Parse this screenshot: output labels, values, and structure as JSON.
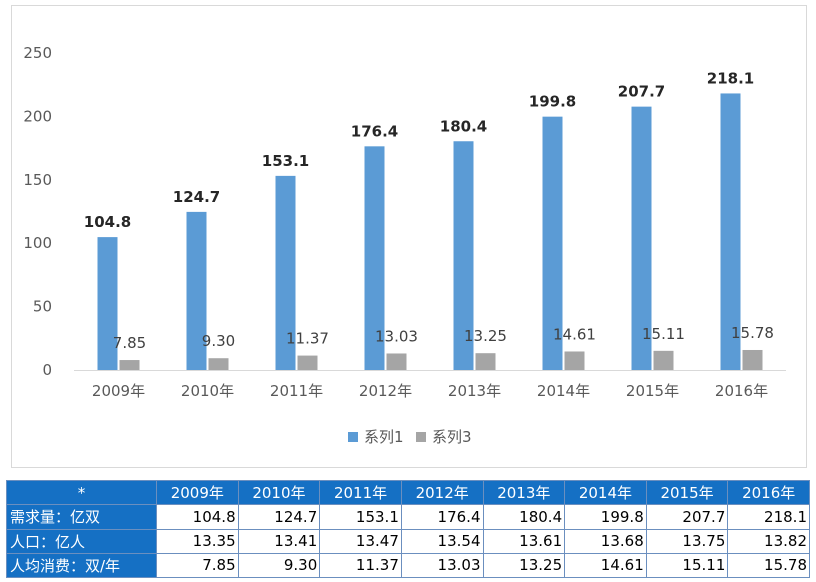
{
  "chart_data": {
    "type": "bar",
    "categories": [
      "2009年",
      "2010年",
      "2011年",
      "2012年",
      "2013年",
      "2014年",
      "2015年",
      "2016年"
    ],
    "series": [
      {
        "name": "系列1",
        "values": [
          104.8,
          124.7,
          153.1,
          176.4,
          180.4,
          199.8,
          207.7,
          218.1
        ],
        "labels": [
          "104.8",
          "124.7",
          "153.1",
          "176.4",
          "180.4",
          "199.8",
          "207.7",
          "218.1"
        ],
        "color": "#5b9bd5"
      },
      {
        "name": "系列3",
        "values": [
          7.85,
          9.3,
          11.37,
          13.03,
          13.25,
          14.61,
          15.11,
          15.78
        ],
        "labels": [
          "7.85",
          "9.30",
          "11.37",
          "13.03",
          "13.25",
          "14.61",
          "15.11",
          "15.78"
        ],
        "color": "#a5a5a5"
      }
    ],
    "ylim": [
      0,
      250
    ],
    "yticks": [
      "0",
      "50",
      "100",
      "150",
      "200",
      "250"
    ],
    "grid": false,
    "legend": "bottom-center"
  },
  "table": {
    "corner": "*",
    "columns": [
      "2009年",
      "2010年",
      "2011年",
      "2012年",
      "2013年",
      "2014年",
      "2015年",
      "2016年"
    ],
    "rows": [
      {
        "label": "需求量：亿双",
        "values": [
          "104.8",
          "124.7",
          "153.1",
          "176.4",
          "180.4",
          "199.8",
          "207.7",
          "218.1"
        ]
      },
      {
        "label": "人口：亿人",
        "values": [
          "13.35",
          "13.41",
          "13.47",
          "13.54",
          "13.61",
          "13.68",
          "13.75",
          "13.82"
        ]
      },
      {
        "label": "人均消费：双/年",
        "values": [
          "7.85",
          "9.30",
          "11.37",
          "13.03",
          "13.25",
          "14.61",
          "15.11",
          "15.78"
        ]
      }
    ]
  },
  "colors": {
    "table_header": "#1570c4",
    "axis_text": "#595959"
  }
}
